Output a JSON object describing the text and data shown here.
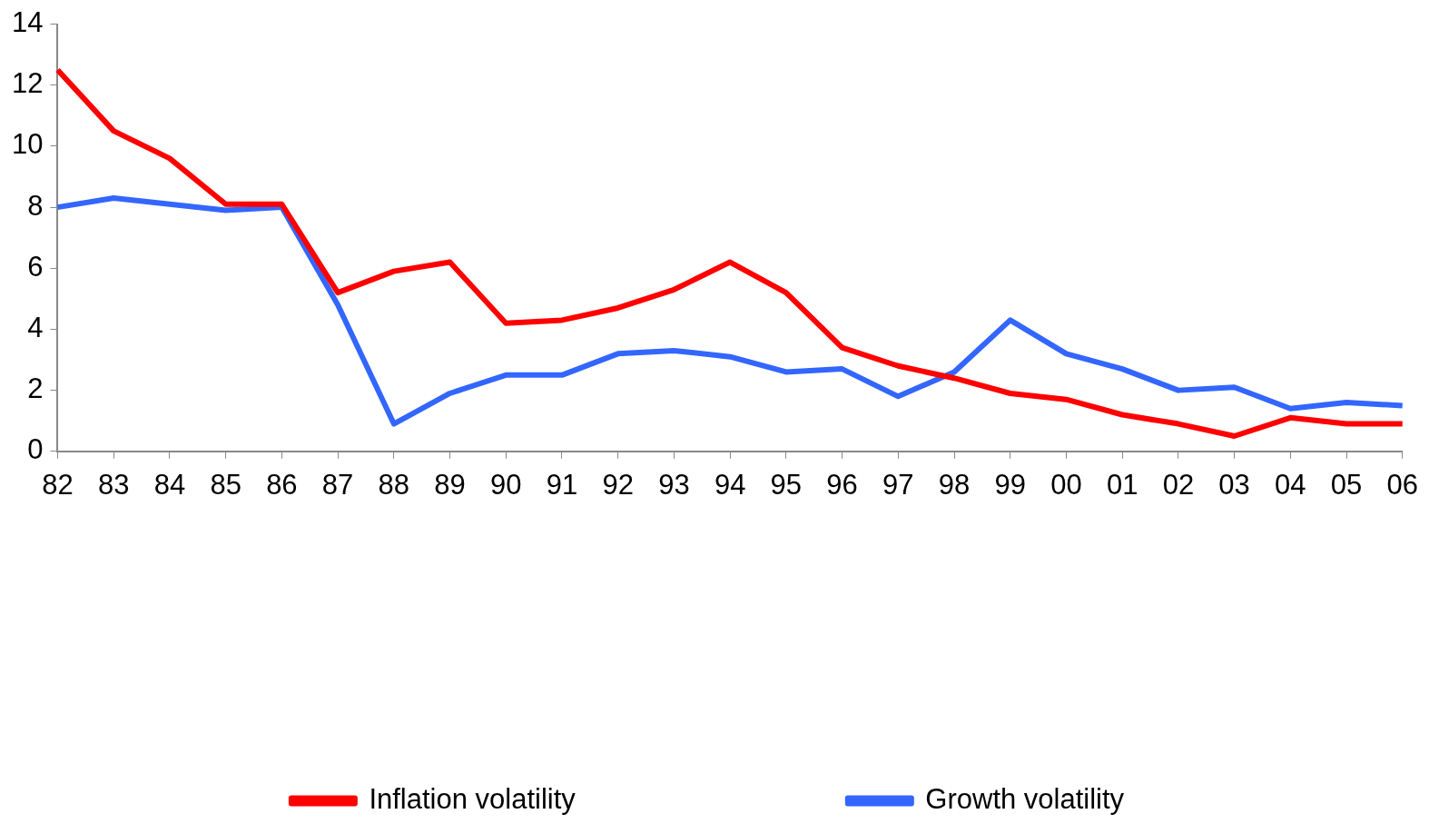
{
  "chart_data": {
    "type": "line",
    "categories": [
      "82",
      "83",
      "84",
      "85",
      "86",
      "87",
      "88",
      "89",
      "90",
      "91",
      "92",
      "93",
      "94",
      "95",
      "96",
      "97",
      "98",
      "99",
      "00",
      "01",
      "02",
      "03",
      "04",
      "05",
      "06"
    ],
    "series": [
      {
        "name": "Inflation volatility",
        "color": "#ff0000",
        "values": [
          12.5,
          10.5,
          9.6,
          8.1,
          8.1,
          5.2,
          5.9,
          6.2,
          4.2,
          4.3,
          4.7,
          5.3,
          6.2,
          5.2,
          3.4,
          2.8,
          2.4,
          1.9,
          1.7,
          1.2,
          0.9,
          0.5,
          1.1,
          0.9,
          0.9
        ]
      },
      {
        "name": "Growth volatility",
        "color": "#3366ff",
        "values": [
          8.0,
          8.3,
          8.1,
          7.9,
          8.0,
          4.8,
          0.9,
          1.9,
          2.5,
          2.5,
          3.2,
          3.3,
          3.1,
          2.6,
          2.7,
          1.8,
          2.6,
          4.3,
          3.2,
          2.7,
          2.0,
          2.1,
          1.4,
          1.6,
          1.5
        ]
      }
    ],
    "ylim": [
      0,
      14
    ],
    "yticks": [
      0,
      2,
      4,
      6,
      8,
      10,
      12,
      14
    ],
    "grid": false,
    "legend": "bottom",
    "marker": "none",
    "line_style": "solid"
  }
}
